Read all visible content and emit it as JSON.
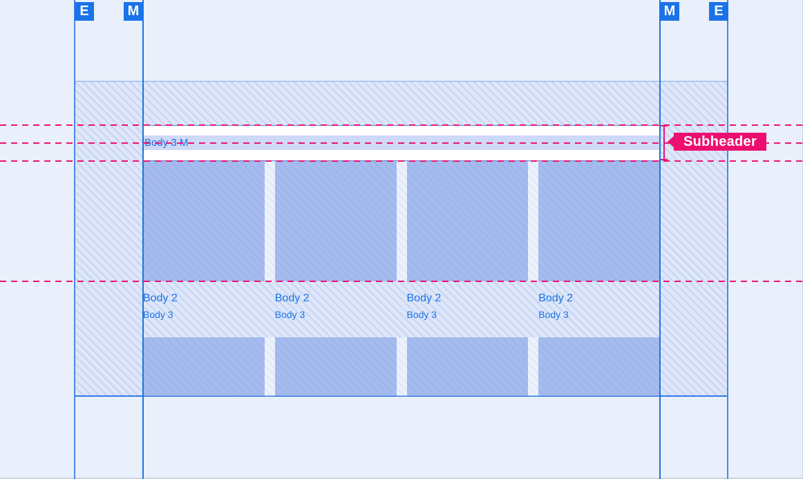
{
  "rulers": {
    "badges": [
      "E",
      "M",
      "M",
      "E"
    ]
  },
  "subheader_bar": {
    "row_label": "Body 3 M"
  },
  "annotation": {
    "label": "Subheader"
  },
  "cards": [
    {
      "title": "Body 2",
      "subtitle": "Body 3"
    },
    {
      "title": "Body 2",
      "subtitle": "Body 3"
    },
    {
      "title": "Body 2",
      "subtitle": "Body 3"
    },
    {
      "title": "Body 2",
      "subtitle": "Body 3"
    }
  ],
  "colors": {
    "background": "#e9effb",
    "accent_blue": "#1a73e8",
    "annotation_pink": "#ec0f6f",
    "guide_pink": "#ee116c",
    "hatch_base": "#dee6f9",
    "hatch_stripe": "#c6d4f1",
    "card_fill": "#a4bbef",
    "highlight_band": "#cdd9f5",
    "subheader_surface": "#ffffff"
  }
}
